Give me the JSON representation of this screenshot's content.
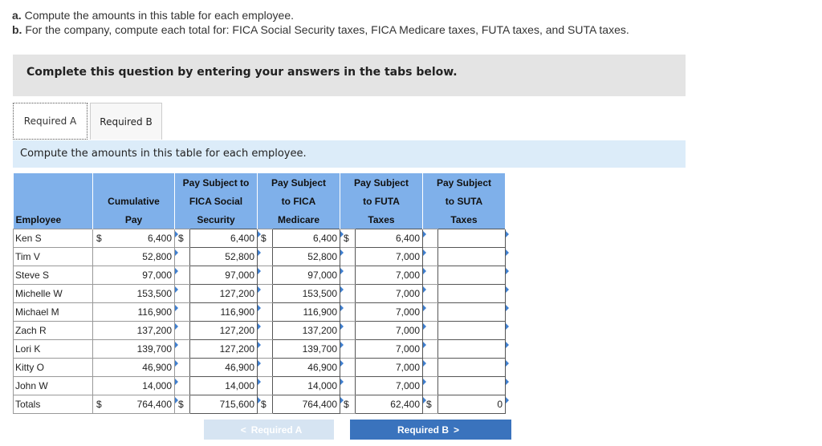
{
  "instructions": {
    "a_label": "a.",
    "a_text": " Compute the amounts in this table for each employee.",
    "b_label": "b.",
    "b_text": " For the company, compute each total for: FICA Social Security taxes, FICA Medicare taxes, FUTA taxes, and SUTA taxes."
  },
  "banner": "Complete this question by entering your answers in the tabs below.",
  "tabs": [
    {
      "label": "Required A"
    },
    {
      "label": "Required B"
    }
  ],
  "subheading": "Compute the amounts in this table for each employee.",
  "table": {
    "headers": {
      "employee": "Employee",
      "cumulative_1": "Cumulative",
      "cumulative_2": "Pay",
      "fica_ss_1": "Pay Subject to",
      "fica_ss_2": "FICA Social",
      "fica_ss_3": "Security",
      "fica_med_1": "Pay Subject",
      "fica_med_2": "to FICA",
      "fica_med_3": "Medicare",
      "futa_1": "Pay Subject",
      "futa_2": "to FUTA",
      "futa_3": "Taxes",
      "suta_1": "Pay Subject",
      "suta_2": "to SUTA",
      "suta_3": "Taxes"
    },
    "currency": "$",
    "rows": [
      {
        "name": "Ken S",
        "cum": "6,400",
        "ss": "6,400",
        "med": "6,400",
        "futa": "6,400",
        "suta": ""
      },
      {
        "name": "Tim V",
        "cum": "52,800",
        "ss": "52,800",
        "med": "52,800",
        "futa": "7,000",
        "suta": ""
      },
      {
        "name": "Steve S",
        "cum": "97,000",
        "ss": "97,000",
        "med": "97,000",
        "futa": "7,000",
        "suta": ""
      },
      {
        "name": "Michelle W",
        "cum": "153,500",
        "ss": "127,200",
        "med": "153,500",
        "futa": "7,000",
        "suta": ""
      },
      {
        "name": "Michael M",
        "cum": "116,900",
        "ss": "116,900",
        "med": "116,900",
        "futa": "7,000",
        "suta": ""
      },
      {
        "name": "Zach R",
        "cum": "137,200",
        "ss": "127,200",
        "med": "137,200",
        "futa": "7,000",
        "suta": ""
      },
      {
        "name": "Lori K",
        "cum": "139,700",
        "ss": "127,200",
        "med": "139,700",
        "futa": "7,000",
        "suta": ""
      },
      {
        "name": "Kitty O",
        "cum": "46,900",
        "ss": "46,900",
        "med": "46,900",
        "futa": "7,000",
        "suta": ""
      },
      {
        "name": "John W",
        "cum": "14,000",
        "ss": "14,000",
        "med": "14,000",
        "futa": "7,000",
        "suta": ""
      }
    ],
    "totals": {
      "name": "Totals",
      "cum": "764,400",
      "ss": "715,600",
      "med": "764,400",
      "futa": "62,400",
      "suta": "0"
    }
  },
  "nav": {
    "prev_label": "Required A",
    "next_label": "Required B",
    "prev_chevron": "<",
    "next_chevron": ">"
  }
}
